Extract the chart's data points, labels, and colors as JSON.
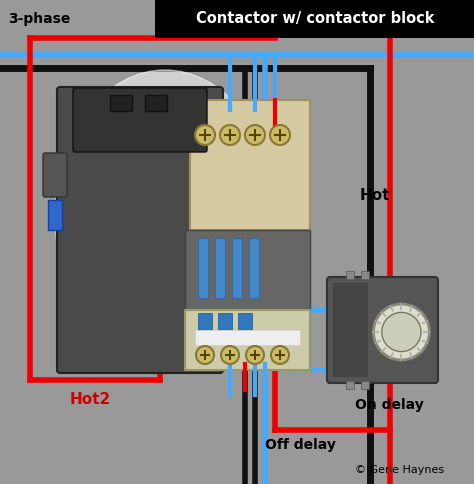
{
  "bg_color": "#999999",
  "title_box_color": "#000000",
  "title_text": "Contactor w/ contactor block",
  "title_text_color": "#ffffff",
  "title_fontsize": 10.5,
  "label_3phase": "3-phase",
  "label_hot": "Hot",
  "label_hot2": "Hot2",
  "label_on_delay": "On delay",
  "label_off_delay": "Off delay",
  "label_copyright": "© Gene Haynes",
  "wire_red": "#ee0000",
  "wire_black": "#111111",
  "wire_blue": "#44aaff",
  "wire_lw": 4.0,
  "wire_lw_thin": 3.0
}
